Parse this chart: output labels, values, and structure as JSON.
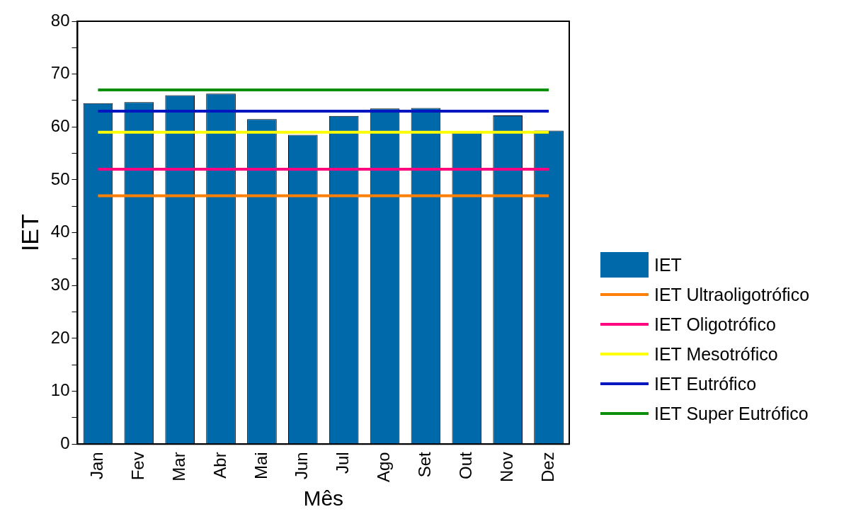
{
  "chart_data": {
    "type": "bar",
    "xlabel": "Mês",
    "ylabel": "IET",
    "categories": [
      "Jan",
      "Fev",
      "Mar",
      "Abr",
      "Mai",
      "Jun",
      "Jul",
      "Ago",
      "Set",
      "Out",
      "Nov",
      "Dez"
    ],
    "series": [
      {
        "name": "IET",
        "color": "#0069aa",
        "values": [
          64.5,
          64.7,
          66.0,
          66.3,
          61.5,
          58.5,
          62.1,
          63.5,
          63.6,
          58.9,
          62.2,
          59.3
        ]
      },
      {
        "name": "IET Ultraoligotrófico",
        "type": "line",
        "color": "#ff7f00",
        "values": [
          47,
          47,
          47,
          47,
          47,
          47,
          47,
          47,
          47,
          47,
          47,
          47
        ]
      },
      {
        "name": "IET Oligotrófico",
        "type": "line",
        "color": "#ff0080",
        "values": [
          52,
          52,
          52,
          52,
          52,
          52,
          52,
          52,
          52,
          52,
          52,
          52
        ]
      },
      {
        "name": "IET Mesotrófico",
        "type": "line",
        "color": "#ffff00",
        "values": [
          59,
          59,
          59,
          59,
          59,
          59,
          59,
          59,
          59,
          59,
          59,
          59
        ]
      },
      {
        "name": "IET Eutrófico",
        "type": "line",
        "color": "#0016c0",
        "values": [
          63,
          63,
          63,
          63,
          63,
          63,
          63,
          63,
          63,
          63,
          63,
          63
        ]
      },
      {
        "name": "IET Super Eutrófico",
        "type": "line",
        "color": "#0a8f0a",
        "values": [
          67,
          67,
          67,
          67,
          67,
          67,
          67,
          67,
          67,
          67,
          67,
          67
        ]
      }
    ],
    "ylim": [
      0,
      80
    ],
    "yticks": [
      0,
      {
        "value": 5,
        "label": null
      },
      10,
      {
        "value": 15,
        "label": null
      },
      20,
      {
        "value": 25,
        "label": null
      },
      30,
      {
        "value": 35,
        "label": null
      },
      40,
      {
        "value": 45,
        "label": null
      },
      50,
      {
        "value": 55,
        "label": null
      },
      60,
      {
        "value": 65,
        "label": null
      },
      70,
      {
        "value": 75,
        "label": null
      },
      80
    ],
    "grid": false,
    "legend": "right",
    "marker": "none"
  }
}
